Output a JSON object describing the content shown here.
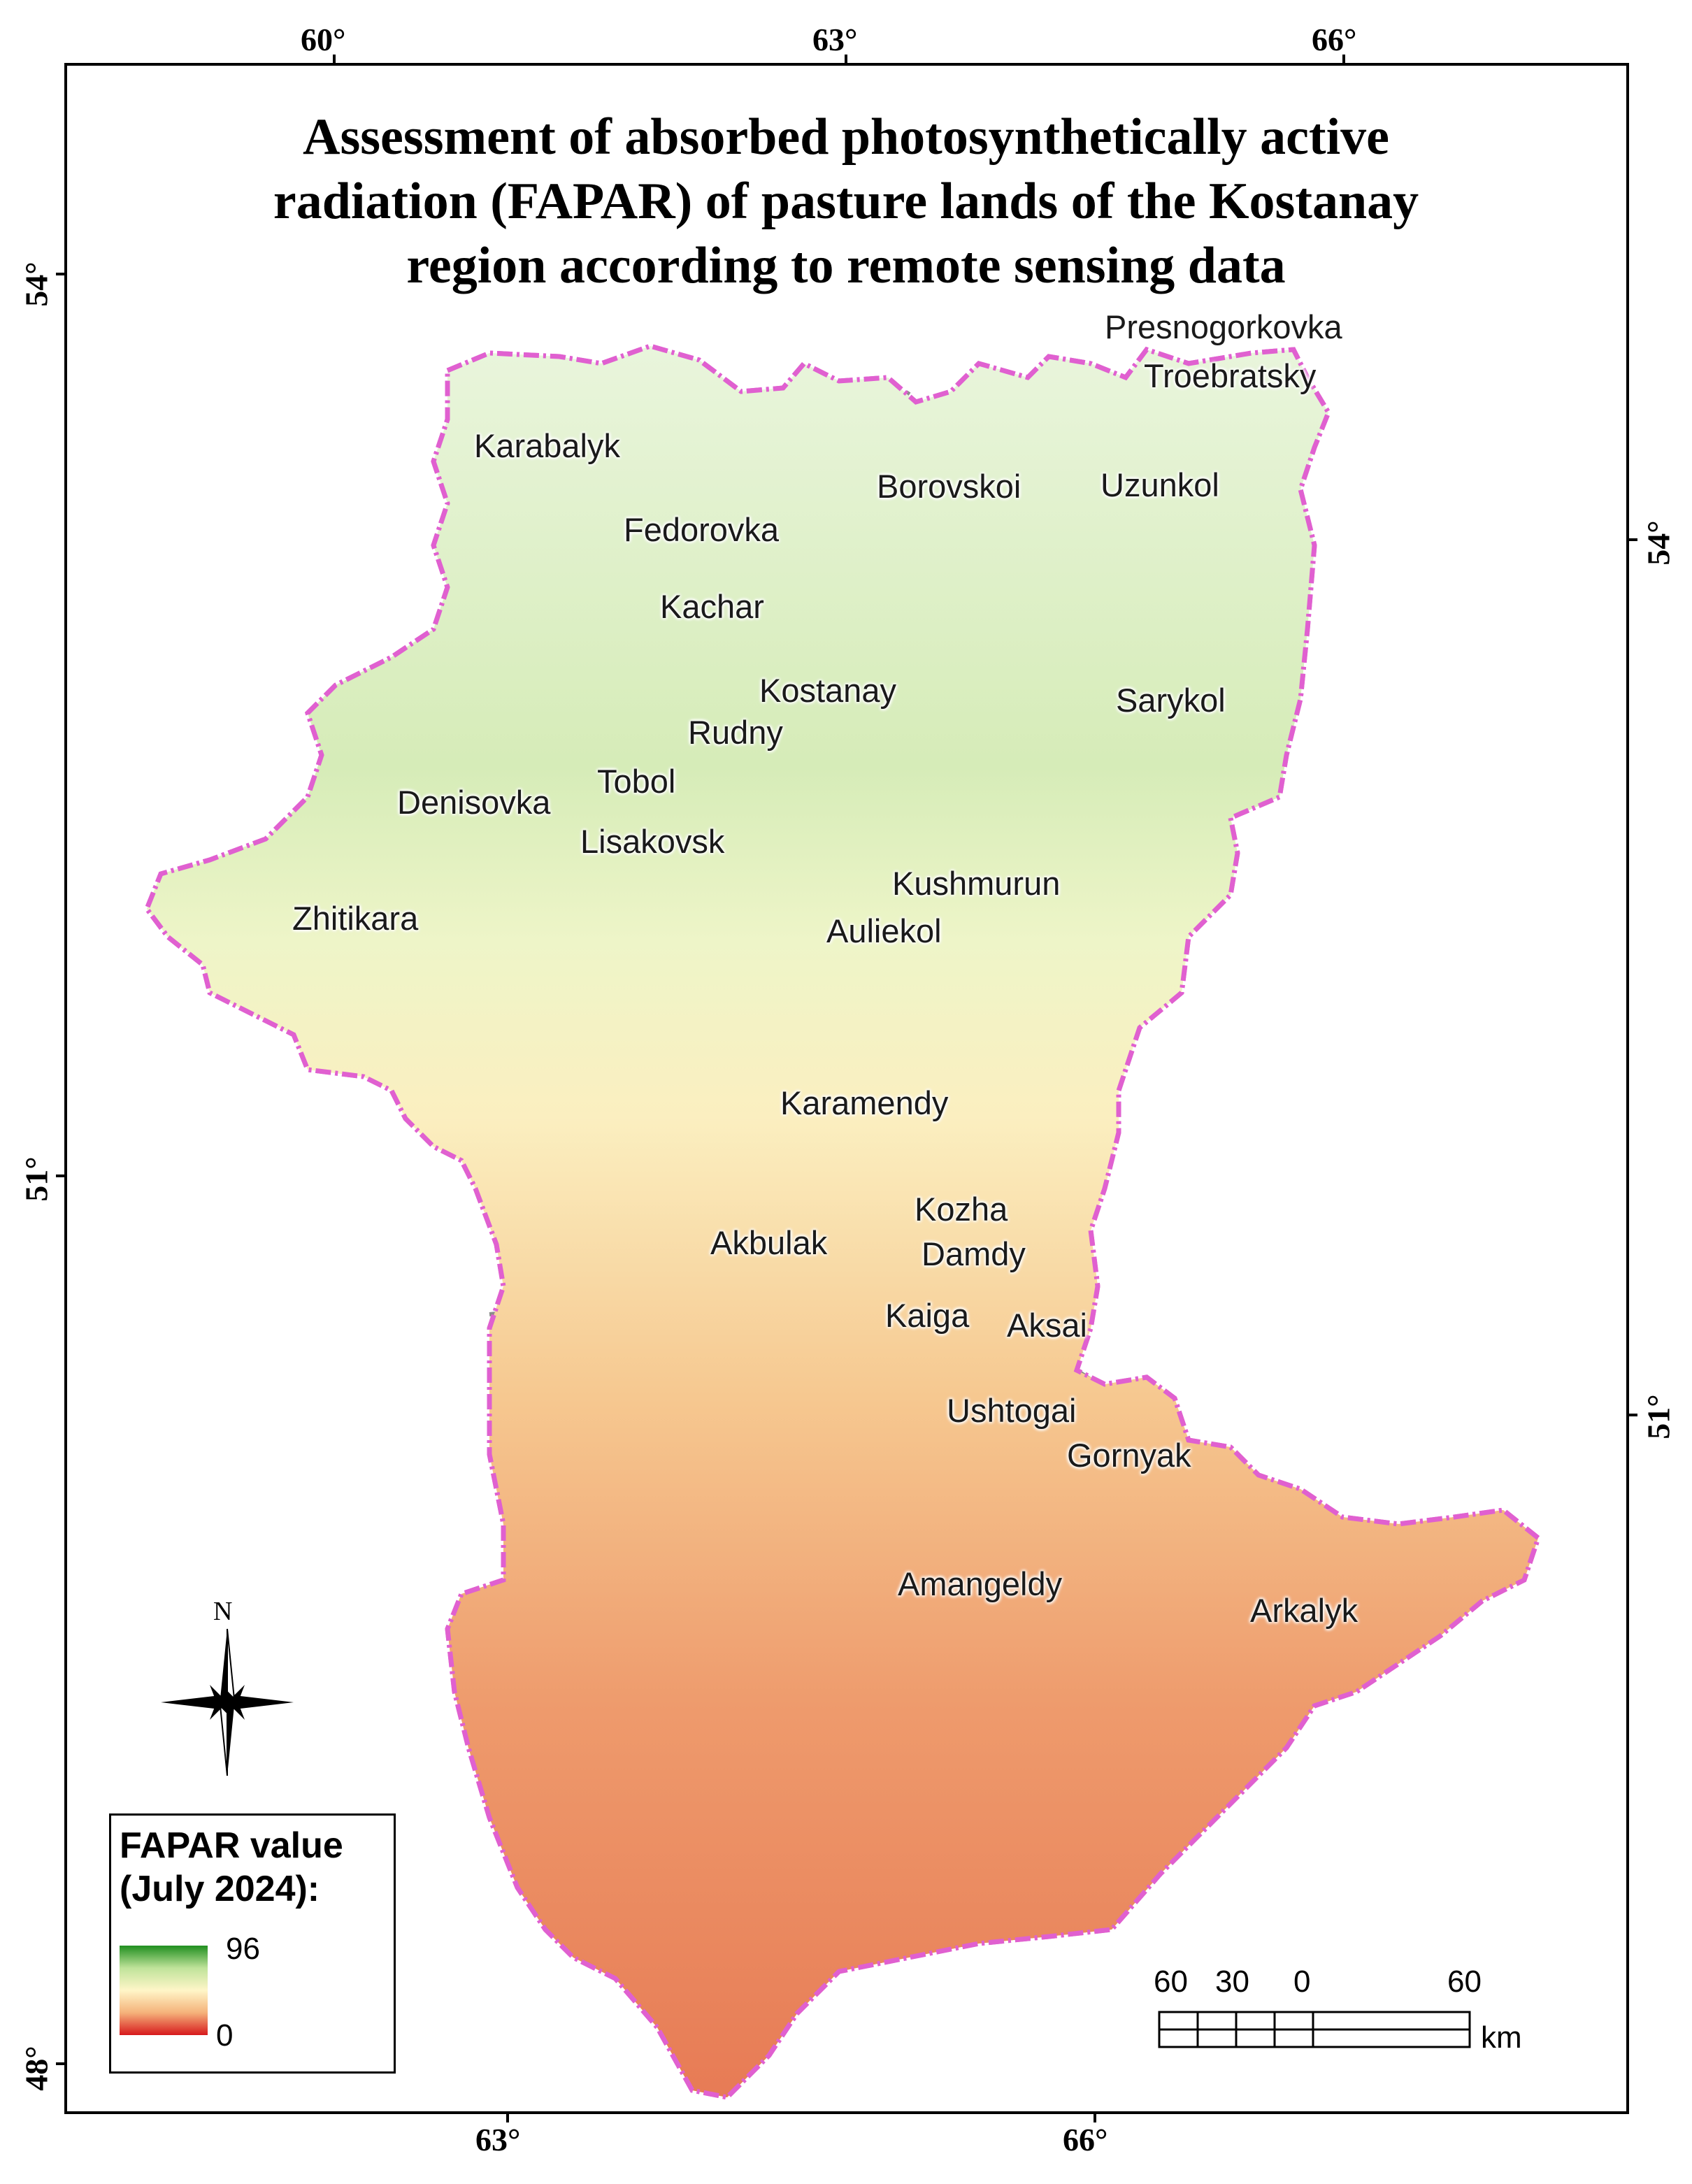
{
  "title": {
    "line1": "Assessment of absorbed photosynthetically active",
    "line2": "radiation (FAPAR) of pasture lands of the Kostanay",
    "line3": "region according to remote sensing data"
  },
  "graticule": {
    "top": [
      "60°",
      "63°",
      "66°"
    ],
    "bottom": [
      "63°",
      "66°"
    ],
    "left": [
      "54°",
      "51°",
      "48°"
    ],
    "right": [
      "54°",
      "51°"
    ]
  },
  "places": [
    "Presnogorkovka",
    "Troebratsky",
    "Karabalyk",
    "Borovskoi",
    "Uzunkol",
    "Fedorovka",
    "Kachar",
    "Kostanay",
    "Sarykol",
    "Rudny",
    "Tobol",
    "Denisovka",
    "Lisakovsk",
    "Kushmurun",
    "Zhitikara",
    "Auliekol",
    "Karamendy",
    "Kozha",
    "Akbulak",
    "Damdy",
    "Kaiga",
    "Aksai",
    "Ushtogai",
    "Gornyak",
    "Amangeldy",
    "Arkalyk"
  ],
  "legend": {
    "title_line1": "FAPAR value",
    "title_line2": "(July 2024):",
    "max": "96",
    "min": "0",
    "colors": [
      "#1f8f1f",
      "#bfe39a",
      "#fff6c8",
      "#f5b27a",
      "#d7191c"
    ]
  },
  "north_arrow": {
    "label": "N",
    "icon": "compass-rose-icon"
  },
  "scale_bar": {
    "labels": [
      "60",
      "30",
      "0",
      "60"
    ],
    "unit": "km"
  },
  "colors": {
    "region_border": "#e060d0",
    "district_border": "#8c8c8c",
    "high_fapar": "#2e8b2e",
    "low_fapar": "#e8603c"
  }
}
